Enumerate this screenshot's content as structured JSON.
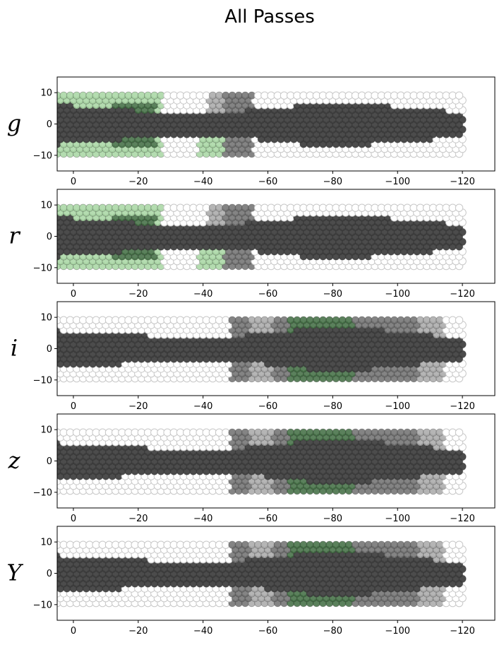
{
  "figure": {
    "title": "All Passes"
  },
  "colors": {
    "background": "#ffffff",
    "empty_outline": "#c8c8c8",
    "dark": "#3d3d3d",
    "mid_gray": "#6e6e6e",
    "light_gray": "#a8a8a8",
    "light_green": "#a7d6a2",
    "dark_green": "#3e6b40"
  },
  "chart_data": [
    {
      "type": "scatter",
      "panel_label": "g",
      "xlim": [
        5,
        -130
      ],
      "ylim": [
        -15,
        15
      ],
      "xticks": [
        "0",
        "−20",
        "−40",
        "−60",
        "−80",
        "−100",
        "−120"
      ],
      "xtick_values": [
        0,
        -20,
        -40,
        -60,
        -80,
        -100,
        -120
      ],
      "yticks": [
        "10",
        "0",
        "−10"
      ],
      "ytick_values": [
        10,
        0,
        -10
      ],
      "footprint": {
        "x_range": [
          5,
          -120
        ],
        "half_width_y": 9.5
      },
      "dark_band": [
        {
          "x": 5,
          "half_width": 6.5
        },
        {
          "x": -30,
          "half_width": 3.5
        },
        {
          "x": -55,
          "half_width": 4.5
        },
        {
          "x": -80,
          "half_width": 7.5
        },
        {
          "x": -120,
          "half_width": 4
        }
      ],
      "regions": [
        {
          "x_range": [
            5,
            -27
          ],
          "y_range": [
            -9.5,
            9.5
          ],
          "color": "light_green"
        },
        {
          "x_range": [
            -12,
            -25
          ],
          "y_range": [
            -7,
            7
          ],
          "color": "dark_green"
        },
        {
          "x_range": [
            -39,
            -47
          ],
          "y_range": [
            -9.5,
            -3
          ],
          "color": "light_green"
        },
        {
          "x_range": [
            -42,
            -55
          ],
          "y_range": [
            -3,
            11
          ],
          "color": "light_gray"
        },
        {
          "x_range": [
            -47,
            -55
          ],
          "y_range": [
            -10,
            11
          ],
          "color": "mid_gray"
        }
      ]
    },
    {
      "type": "scatter",
      "panel_label": "r",
      "xlim": [
        5,
        -130
      ],
      "ylim": [
        -15,
        15
      ],
      "xticks": [
        "0",
        "−20",
        "−40",
        "−60",
        "−80",
        "−100",
        "−120"
      ],
      "xtick_values": [
        0,
        -20,
        -40,
        -60,
        -80,
        -100,
        -120
      ],
      "yticks": [
        "10",
        "0",
        "−10"
      ],
      "ytick_values": [
        10,
        0,
        -10
      ],
      "footprint": {
        "x_range": [
          5,
          -120
        ],
        "half_width_y": 9.5
      },
      "dark_band": [
        {
          "x": 5,
          "half_width": 6.5
        },
        {
          "x": -30,
          "half_width": 3.5
        },
        {
          "x": -55,
          "half_width": 4.5
        },
        {
          "x": -80,
          "half_width": 7.5
        },
        {
          "x": -120,
          "half_width": 4
        }
      ],
      "regions": [
        {
          "x_range": [
            5,
            -27
          ],
          "y_range": [
            -9.5,
            9.5
          ],
          "color": "light_green"
        },
        {
          "x_range": [
            -12,
            -25
          ],
          "y_range": [
            -7,
            7
          ],
          "color": "dark_green"
        },
        {
          "x_range": [
            -39,
            -47
          ],
          "y_range": [
            -9.5,
            -3
          ],
          "color": "light_green"
        },
        {
          "x_range": [
            -42,
            -55
          ],
          "y_range": [
            -3,
            11
          ],
          "color": "light_gray"
        },
        {
          "x_range": [
            -47,
            -55
          ],
          "y_range": [
            -10,
            11
          ],
          "color": "mid_gray"
        }
      ]
    },
    {
      "type": "scatter",
      "panel_label": "i",
      "xlim": [
        5,
        -130
      ],
      "ylim": [
        -15,
        15
      ],
      "xticks": [
        "0",
        "−20",
        "−40",
        "−60",
        "−80",
        "−100",
        "−120"
      ],
      "xtick_values": [
        0,
        -20,
        -40,
        -60,
        -80,
        -100,
        -120
      ],
      "yticks": [
        "10",
        "0",
        "−10"
      ],
      "ytick_values": [
        10,
        0,
        -10
      ],
      "footprint": {
        "x_range": [
          5,
          -120
        ],
        "half_width_y": 9.5
      },
      "dark_band": [
        {
          "x": 5,
          "half_width": 6
        },
        {
          "x": -40,
          "half_width": 3.5
        },
        {
          "x": -60,
          "half_width": 5
        },
        {
          "x": -80,
          "half_width": 7.5
        },
        {
          "x": -120,
          "half_width": 3.5
        }
      ],
      "regions": [
        {
          "x_range": [
            -49,
            -55
          ],
          "y_range": [
            -10,
            11
          ],
          "color": "mid_gray"
        },
        {
          "x_range": [
            -55,
            -62
          ],
          "y_range": [
            -10,
            11
          ],
          "color": "light_gray"
        },
        {
          "x_range": [
            -62,
            -67
          ],
          "y_range": [
            -10,
            11
          ],
          "color": "mid_gray"
        },
        {
          "x_range": [
            -67,
            -87
          ],
          "y_range": [
            -10,
            11
          ],
          "color": "dark_green"
        },
        {
          "x_range": [
            -87,
            -107
          ],
          "y_range": [
            -10,
            11
          ],
          "color": "mid_gray"
        },
        {
          "x_range": [
            -107,
            -114
          ],
          "y_range": [
            -10,
            11
          ],
          "color": "light_gray"
        }
      ]
    },
    {
      "type": "scatter",
      "panel_label": "z",
      "xlim": [
        5,
        -130
      ],
      "ylim": [
        -15,
        15
      ],
      "xticks": [
        "0",
        "−20",
        "−40",
        "−60",
        "−80",
        "−100",
        "−120"
      ],
      "xtick_values": [
        0,
        -20,
        -40,
        -60,
        -80,
        -100,
        -120
      ],
      "yticks": [
        "10",
        "0",
        "−10"
      ],
      "ytick_values": [
        10,
        0,
        -10
      ],
      "footprint": {
        "x_range": [
          5,
          -120
        ],
        "half_width_y": 9.5
      },
      "dark_band": [
        {
          "x": 5,
          "half_width": 6
        },
        {
          "x": -40,
          "half_width": 3.5
        },
        {
          "x": -60,
          "half_width": 5
        },
        {
          "x": -80,
          "half_width": 7.5
        },
        {
          "x": -120,
          "half_width": 3.5
        }
      ],
      "regions": [
        {
          "x_range": [
            -49,
            -55
          ],
          "y_range": [
            -10,
            11
          ],
          "color": "mid_gray"
        },
        {
          "x_range": [
            -55,
            -62
          ],
          "y_range": [
            -10,
            11
          ],
          "color": "light_gray"
        },
        {
          "x_range": [
            -62,
            -67
          ],
          "y_range": [
            -10,
            11
          ],
          "color": "mid_gray"
        },
        {
          "x_range": [
            -67,
            -87
          ],
          "y_range": [
            -10,
            11
          ],
          "color": "dark_green"
        },
        {
          "x_range": [
            -87,
            -107
          ],
          "y_range": [
            -10,
            11
          ],
          "color": "mid_gray"
        },
        {
          "x_range": [
            -107,
            -114
          ],
          "y_range": [
            -10,
            11
          ],
          "color": "light_gray"
        }
      ]
    },
    {
      "type": "scatter",
      "panel_label": "Y",
      "xlim": [
        5,
        -130
      ],
      "ylim": [
        -15,
        15
      ],
      "xticks": [
        "0",
        "−20",
        "−40",
        "−60",
        "−80",
        "−100",
        "−120"
      ],
      "xtick_values": [
        0,
        -20,
        -40,
        -60,
        -80,
        -100,
        -120
      ],
      "yticks": [
        "10",
        "0",
        "−10"
      ],
      "ytick_values": [
        10,
        0,
        -10
      ],
      "footprint": {
        "x_range": [
          5,
          -120
        ],
        "half_width_y": 9.5
      },
      "dark_band": [
        {
          "x": 5,
          "half_width": 6
        },
        {
          "x": -40,
          "half_width": 3.5
        },
        {
          "x": -60,
          "half_width": 5
        },
        {
          "x": -80,
          "half_width": 7.5
        },
        {
          "x": -120,
          "half_width": 3.5
        }
      ],
      "regions": [
        {
          "x_range": [
            -49,
            -55
          ],
          "y_range": [
            -10,
            11
          ],
          "color": "mid_gray"
        },
        {
          "x_range": [
            -55,
            -62
          ],
          "y_range": [
            -10,
            11
          ],
          "color": "light_gray"
        },
        {
          "x_range": [
            -62,
            -67
          ],
          "y_range": [
            -10,
            11
          ],
          "color": "mid_gray"
        },
        {
          "x_range": [
            -67,
            -87
          ],
          "y_range": [
            -10,
            11
          ],
          "color": "dark_green"
        },
        {
          "x_range": [
            -87,
            -107
          ],
          "y_range": [
            -10,
            11
          ],
          "color": "mid_gray"
        },
        {
          "x_range": [
            -107,
            -114
          ],
          "y_range": [
            -10,
            11
          ],
          "color": "light_gray"
        }
      ]
    }
  ]
}
